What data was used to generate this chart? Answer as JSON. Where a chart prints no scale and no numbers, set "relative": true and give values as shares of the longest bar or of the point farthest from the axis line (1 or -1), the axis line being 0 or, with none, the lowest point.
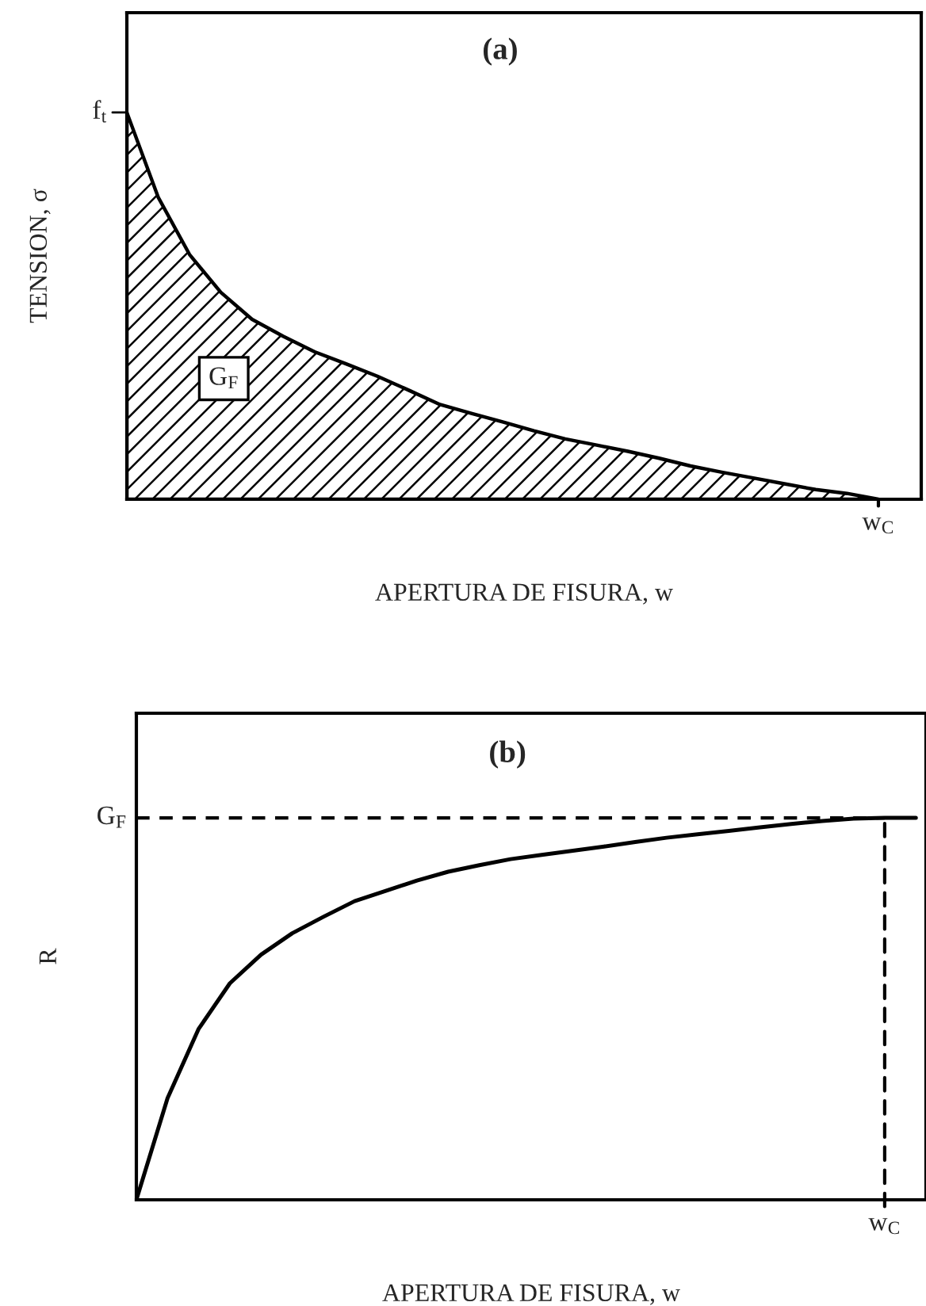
{
  "chart_data": [
    {
      "type": "area",
      "title": "(a)",
      "xlabel": "APERTURA DE FISURA, w",
      "ylabel": "TENSION, σ",
      "relative": true,
      "categories": [
        null,
        null,
        null,
        null,
        null,
        null,
        null,
        null,
        null,
        null,
        null,
        null,
        null,
        null,
        null,
        null,
        null,
        null,
        null,
        null,
        null,
        null,
        null,
        null,
        null
      ],
      "series": [
        {
          "color": "#000000",
          "values": [
            1,
            0.781,
            0.633,
            0.535,
            0.465,
            0.421,
            0.381,
            0.35,
            0.318,
            0.282,
            0.245,
            0.222,
            0.2,
            0.177,
            0.156,
            0.14,
            0.124,
            0.106,
            0.086,
            0.07,
            0.055,
            0.04,
            0.025,
            0.015,
            0
          ]
        }
      ],
      "annotations": [
        "f$_{t}$",
        "G$_{F}$",
        "w$_{C}$"
      ]
    },
    {
      "type": "line",
      "title": "(b)",
      "xlabel": "APERTURA DE FISURA, w",
      "ylabel": "R",
      "relative": true,
      "categories": [
        null,
        null,
        null,
        null,
        null,
        null,
        null,
        null,
        null,
        null,
        null,
        null,
        null,
        null,
        null,
        null,
        null,
        null,
        null,
        null,
        null,
        null,
        null,
        null,
        null,
        null
      ],
      "series": [
        {
          "color": "#000000",
          "values": [
            0,
            0.266,
            0.448,
            0.567,
            0.642,
            0.698,
            0.741,
            0.782,
            0.809,
            0.836,
            0.859,
            0.876,
            0.892,
            0.903,
            0.914,
            0.925,
            0.937,
            0.948,
            0.957,
            0.966,
            0.975,
            0.984,
            0.992,
            0.998,
            1,
            1
          ]
        }
      ],
      "ref_lines": [
        {
          "axis": "y",
          "value": 1,
          "label": "G$_{F}$",
          "line_style": "dashed",
          "color": "#000000"
        }
      ],
      "annotations": [
        "w$_{C}$"
      ]
    }
  ]
}
